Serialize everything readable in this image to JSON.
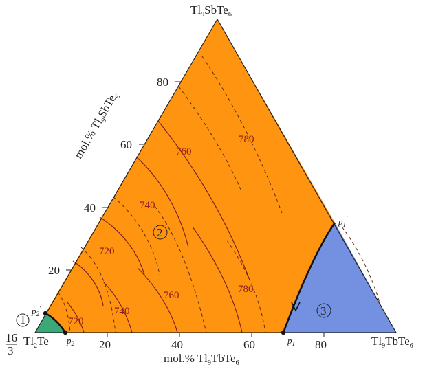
{
  "vertices": {
    "top": {
      "main": "Tl",
      "s1": "9",
      "mid": "SbTe",
      "s2": "6"
    },
    "left": {
      "main": "Tl",
      "s1": "2",
      "mid": "Te"
    },
    "right": {
      "main": "Tl",
      "s1": "9",
      "mid": "TbTe",
      "s2": "6"
    },
    "fraction": {
      "num": "16",
      "den": "3"
    }
  },
  "axes": {
    "left": {
      "text": "mol.% Tl",
      "sub": "9",
      "rest": "SbTe",
      "sub2": "6"
    },
    "bottom": {
      "text": "mol.% Tl",
      "sub": "9",
      "rest": "TbTe",
      "sub2": "6"
    }
  },
  "ticks": {
    "left": [
      "20",
      "40",
      "60",
      "80"
    ],
    "bottom": [
      "20",
      "40",
      "60",
      "80"
    ]
  },
  "isotherm_labels": [
    {
      "id": "iso-720-upper",
      "text": "720"
    },
    {
      "id": "iso-740-upper",
      "text": "740"
    },
    {
      "id": "iso-760-upper",
      "text": "760"
    },
    {
      "id": "iso-780-upper",
      "text": "780"
    },
    {
      "id": "iso-720-lower",
      "text": "720"
    },
    {
      "id": "iso-740-lower",
      "text": "740"
    },
    {
      "id": "iso-760-lower",
      "text": "760"
    },
    {
      "id": "iso-780-lower",
      "text": "780"
    }
  ],
  "fields": [
    {
      "id": "field-1",
      "text": "1",
      "color": "#3aa877"
    },
    {
      "id": "field-2",
      "text": "2",
      "color": "#ff9410"
    },
    {
      "id": "field-3",
      "text": "3",
      "color": "#7490e0"
    }
  ],
  "points": {
    "p1": {
      "base": "p",
      "sub": "1"
    },
    "p1prime": {
      "base": "p",
      "sub": "1",
      "prime": "′"
    },
    "p2": {
      "base": "p",
      "sub": "2"
    },
    "p2prime": {
      "base": "p",
      "sub": "2",
      "prime": "′"
    }
  }
}
